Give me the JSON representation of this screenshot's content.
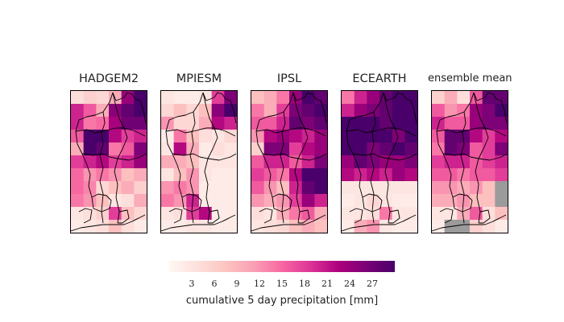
{
  "chart_data": {
    "type": "heatmap",
    "grid_rows": 11,
    "grid_cols": 6,
    "colormap": "RdPu",
    "colormap_stops": [
      "#fff7f3",
      "#fde0dd",
      "#fcc5c0",
      "#fa9fb5",
      "#f768a1",
      "#dd3497",
      "#ae017e",
      "#7a0177",
      "#49006a"
    ],
    "missing_color": "#9b9b9b",
    "vmin": 0,
    "vmax": 30,
    "panels": [
      {
        "title": "HADGEM2",
        "values": [
          [
            4,
            6,
            5,
            10,
            24,
            30
          ],
          [
            20,
            16,
            10,
            25,
            28,
            30
          ],
          [
            20,
            14,
            15,
            23,
            27,
            27
          ],
          [
            16,
            30,
            30,
            22,
            18,
            20
          ],
          [
            10,
            30,
            28,
            14,
            16,
            26
          ],
          [
            18,
            20,
            22,
            18,
            20,
            24
          ],
          [
            15,
            12,
            14,
            12,
            8,
            10
          ],
          [
            15,
            13,
            5,
            8,
            10,
            6
          ],
          [
            14,
            12,
            8,
            3,
            4,
            10
          ],
          [
            3,
            4,
            6,
            18,
            8,
            5
          ],
          [
            2,
            3,
            4,
            8,
            4,
            2
          ]
        ]
      },
      {
        "title": "MPIESM",
        "values": [
          [
            3,
            2,
            2,
            3,
            18,
            26
          ],
          [
            5,
            8,
            5,
            8,
            25,
            30
          ],
          [
            12,
            5,
            5,
            10,
            22,
            20
          ],
          [
            2,
            14,
            8,
            4,
            3,
            5
          ],
          [
            3,
            22,
            10,
            2,
            4,
            3
          ],
          [
            10,
            10,
            8,
            3,
            3,
            3
          ],
          [
            3,
            8,
            12,
            3,
            2,
            2
          ],
          [
            12,
            14,
            12,
            2,
            2,
            2
          ],
          [
            14,
            12,
            20,
            2,
            2,
            2
          ],
          [
            3,
            4,
            18,
            22,
            2,
            2
          ],
          [
            2,
            2,
            3,
            3,
            2,
            2
          ]
        ]
      },
      {
        "title": "IPSL",
        "values": [
          [
            8,
            10,
            14,
            24,
            30,
            28
          ],
          [
            14,
            10,
            18,
            26,
            28,
            30
          ],
          [
            16,
            16,
            20,
            28,
            26,
            28
          ],
          [
            12,
            22,
            24,
            22,
            20,
            24
          ],
          [
            6,
            26,
            26,
            18,
            22,
            24
          ],
          [
            16,
            20,
            20,
            16,
            20,
            26
          ],
          [
            18,
            16,
            14,
            22,
            30,
            30
          ],
          [
            16,
            12,
            8,
            20,
            28,
            30
          ],
          [
            12,
            10,
            12,
            18,
            24,
            20
          ],
          [
            4,
            3,
            10,
            14,
            16,
            10
          ],
          [
            3,
            4,
            5,
            8,
            10,
            8
          ]
        ]
      },
      {
        "title": "ECEARTH",
        "values": [
          [
            14,
            20,
            24,
            28,
            30,
            30
          ],
          [
            20,
            24,
            26,
            28,
            30,
            30
          ],
          [
            30,
            30,
            30,
            28,
            30,
            30
          ],
          [
            30,
            30,
            30,
            30,
            26,
            30
          ],
          [
            30,
            30,
            26,
            28,
            30,
            28
          ],
          [
            24,
            28,
            26,
            24,
            24,
            26
          ],
          [
            22,
            20,
            22,
            20,
            24,
            22
          ],
          [
            3,
            3,
            3,
            3,
            3,
            3
          ],
          [
            2,
            3,
            5,
            3,
            2,
            2
          ],
          [
            3,
            3,
            4,
            14,
            3,
            3
          ],
          [
            2,
            10,
            12,
            3,
            2,
            2
          ]
        ]
      },
      {
        "title": "ensemble mean",
        "values": [
          [
            6,
            10,
            4,
            16,
            28,
            28
          ],
          [
            16,
            12,
            14,
            24,
            26,
            30
          ],
          [
            20,
            16,
            16,
            24,
            26,
            26
          ],
          [
            16,
            28,
            28,
            22,
            18,
            22
          ],
          [
            14,
            28,
            26,
            16,
            18,
            26
          ],
          [
            18,
            20,
            20,
            16,
            18,
            20
          ],
          [
            16,
            16,
            14,
            16,
            16,
            18
          ],
          [
            12,
            12,
            10,
            12,
            8,
            null
          ],
          [
            10,
            10,
            12,
            8,
            8,
            null
          ],
          [
            3,
            3,
            10,
            16,
            4,
            8
          ],
          [
            2,
            null,
            null,
            6,
            4,
            2
          ]
        ]
      }
    ],
    "colorbar": {
      "ticks": [
        3,
        6,
        9,
        12,
        15,
        18,
        21,
        24,
        27
      ],
      "tick_labels": [
        "3",
        "6",
        "9",
        "12",
        "15",
        "18",
        "21",
        "24",
        "27"
      ],
      "range": [
        0,
        30
      ],
      "label": "cumulative 5 day precipitation [mm]"
    }
  }
}
